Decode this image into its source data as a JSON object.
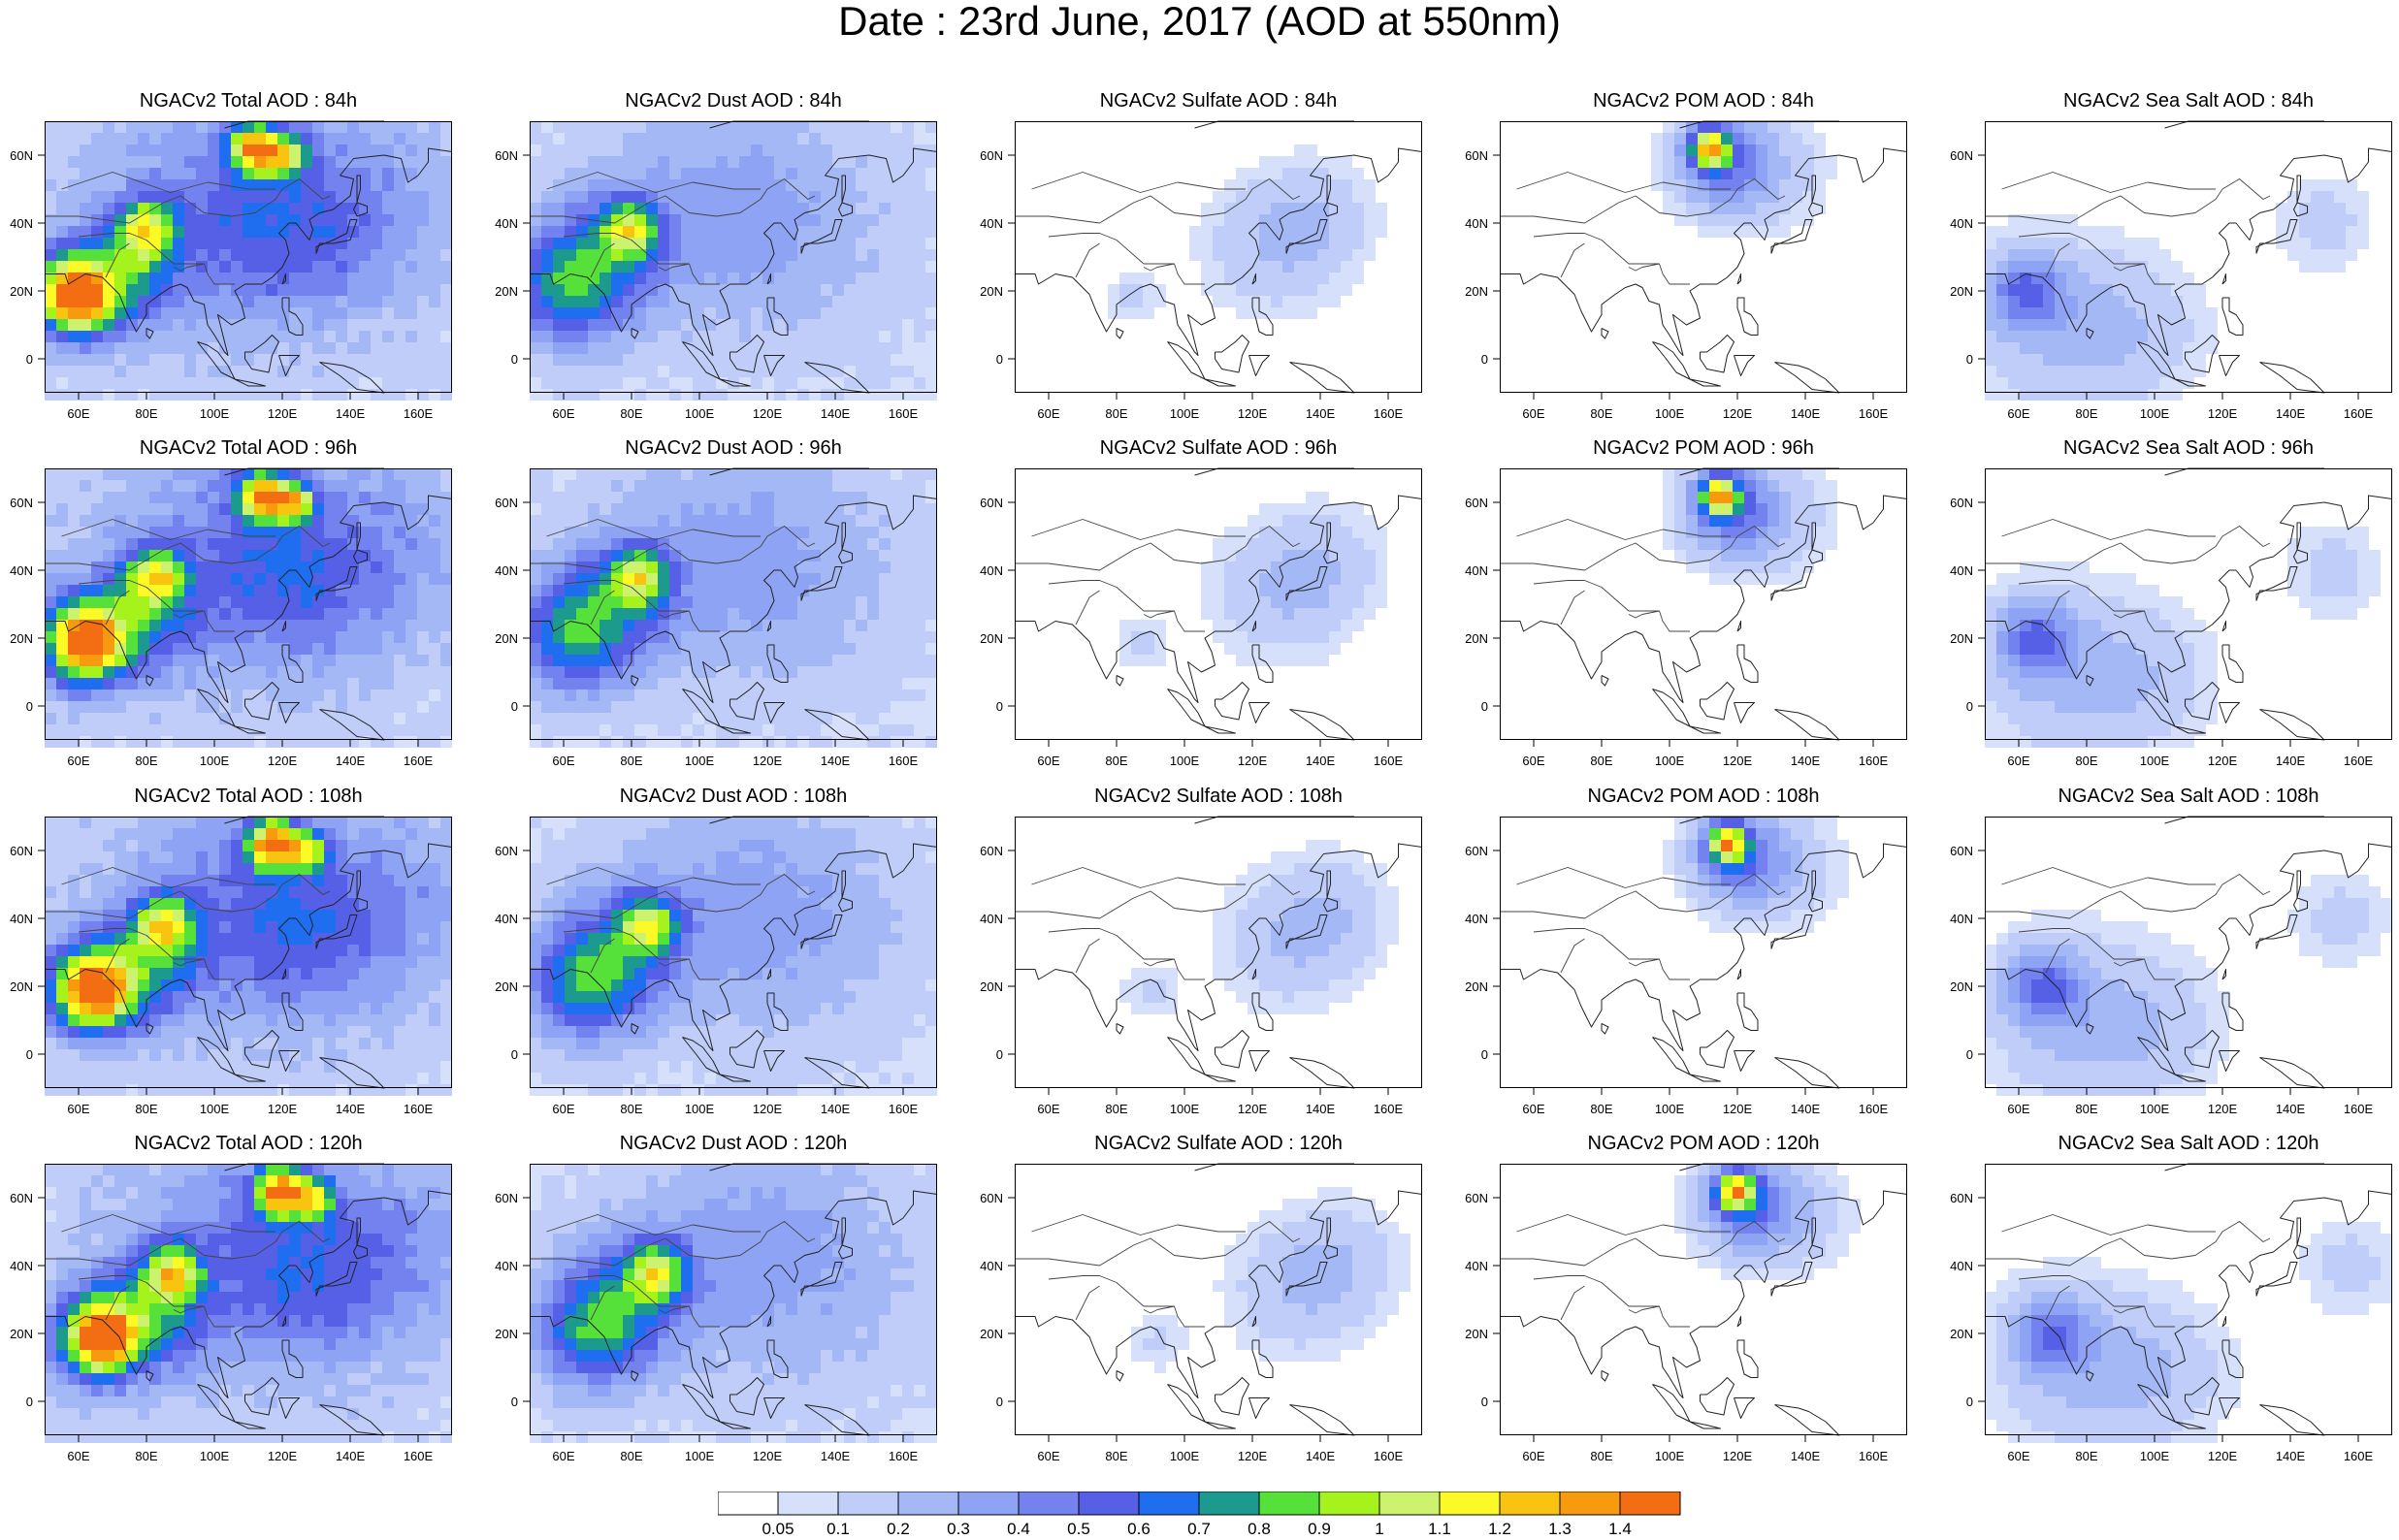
{
  "title": "Date : 23rd June, 2017 (AOD at 550nm)",
  "map": {
    "projection": "cylindrical-equidistant",
    "lon_range": [
      50,
      170
    ],
    "lat_range": [
      -10,
      70
    ],
    "lon_ticks": [
      "60E",
      "80E",
      "100E",
      "120E",
      "140E",
      "160E"
    ],
    "lat_ticks": [
      "0",
      "20N",
      "40N",
      "60N"
    ]
  },
  "panels": [
    {
      "title": "NGACv2 Total AOD : 84h",
      "species": "total",
      "hour": 84
    },
    {
      "title": "NGACv2 Dust AOD : 84h",
      "species": "dust",
      "hour": 84
    },
    {
      "title": "NGACv2 Sulfate AOD : 84h",
      "species": "sulfate",
      "hour": 84
    },
    {
      "title": "NGACv2 POM AOD : 84h",
      "species": "pom",
      "hour": 84
    },
    {
      "title": "NGACv2 Sea Salt AOD : 84h",
      "species": "seasalt",
      "hour": 84
    },
    {
      "title": "NGACv2 Total AOD : 96h",
      "species": "total",
      "hour": 96
    },
    {
      "title": "NGACv2 Dust AOD : 96h",
      "species": "dust",
      "hour": 96
    },
    {
      "title": "NGACv2 Sulfate AOD : 96h",
      "species": "sulfate",
      "hour": 96
    },
    {
      "title": "NGACv2 POM AOD : 96h",
      "species": "pom",
      "hour": 96
    },
    {
      "title": "NGACv2 Sea Salt AOD : 96h",
      "species": "seasalt",
      "hour": 96
    },
    {
      "title": "NGACv2 Total AOD : 108h",
      "species": "total",
      "hour": 108
    },
    {
      "title": "NGACv2 Dust AOD : 108h",
      "species": "dust",
      "hour": 108
    },
    {
      "title": "NGACv2 Sulfate AOD : 108h",
      "species": "sulfate",
      "hour": 108
    },
    {
      "title": "NGACv2 POM AOD : 108h",
      "species": "pom",
      "hour": 108
    },
    {
      "title": "NGACv2 Sea Salt AOD : 108h",
      "species": "seasalt",
      "hour": 108
    },
    {
      "title": "NGACv2 Total AOD : 120h",
      "species": "total",
      "hour": 120
    },
    {
      "title": "NGACv2 Dust AOD : 120h",
      "species": "dust",
      "hour": 120
    },
    {
      "title": "NGACv2 Sulfate AOD : 120h",
      "species": "sulfate",
      "hour": 120
    },
    {
      "title": "NGACv2 POM AOD : 120h",
      "species": "pom",
      "hour": 120
    },
    {
      "title": "NGACv2 Sea Salt  AOD : 120h",
      "species": "seasalt",
      "hour": 120
    }
  ],
  "colorbar": {
    "labels": [
      "0.05",
      "0.1",
      "0.2",
      "0.3",
      "0.4",
      "0.5",
      "0.6",
      "0.7",
      "0.8",
      "0.9",
      "1",
      "1.1",
      "1.2",
      "1.3",
      "1.4"
    ],
    "colors": [
      "#ffffff",
      "#d6e0fa",
      "#bfcdf8",
      "#a5b8f6",
      "#8ea3f3",
      "#7382ef",
      "#5560e6",
      "#1f6ef0",
      "#1d9a8e",
      "#56e03a",
      "#a6f21c",
      "#ccf26e",
      "#fbfa26",
      "#f9c40f",
      "#f79a0e",
      "#f36d12",
      "#ec2a1c"
    ]
  },
  "plumes": {
    "total": [
      {
        "lon": 60,
        "lat": 18,
        "v": 0.82,
        "r": 7
      },
      {
        "lon": 57,
        "lat": 20,
        "v": 0.6,
        "r": 10
      },
      {
        "lon": 80,
        "lat": 38,
        "v": 0.75,
        "r": 6
      },
      {
        "lon": 112,
        "lat": 62,
        "v": 1.1,
        "r": 5
      },
      {
        "lon": 122,
        "lat": 60,
        "v": 0.7,
        "r": 4
      },
      {
        "lon": 75,
        "lat": 25,
        "v": 0.45,
        "r": 12
      },
      {
        "lon": 100,
        "lat": 50,
        "v": 0.25,
        "r": 25
      },
      {
        "lon": 120,
        "lat": 35,
        "v": 0.3,
        "r": 18
      },
      {
        "lon": 150,
        "lat": 45,
        "v": 0.2,
        "r": 20
      }
    ],
    "dust": [
      {
        "lon": 60,
        "lat": 20,
        "v": 0.5,
        "r": 12
      },
      {
        "lon": 80,
        "lat": 38,
        "v": 0.7,
        "r": 6
      },
      {
        "lon": 70,
        "lat": 30,
        "v": 0.35,
        "r": 14
      },
      {
        "lon": 100,
        "lat": 45,
        "v": 0.2,
        "r": 25
      },
      {
        "lon": 130,
        "lat": 38,
        "v": 0.15,
        "r": 25
      }
    ],
    "sulfate": [
      {
        "lon": 125,
        "lat": 33,
        "v": 0.18,
        "r": 14
      },
      {
        "lon": 140,
        "lat": 42,
        "v": 0.14,
        "r": 12
      },
      {
        "lon": 85,
        "lat": 18,
        "v": 0.12,
        "r": 6
      }
    ],
    "pom": [
      {
        "lon": 112,
        "lat": 62,
        "v": 1.0,
        "r": 4
      },
      {
        "lon": 115,
        "lat": 58,
        "v": 0.45,
        "r": 10
      },
      {
        "lon": 130,
        "lat": 55,
        "v": 0.15,
        "r": 12
      }
    ],
    "seasalt": [
      {
        "lon": 62,
        "lat": 20,
        "v": 0.4,
        "r": 8
      },
      {
        "lon": 70,
        "lat": 10,
        "v": 0.2,
        "r": 18
      },
      {
        "lon": 95,
        "lat": 8,
        "v": 0.14,
        "r": 15
      },
      {
        "lon": 150,
        "lat": 40,
        "v": 0.14,
        "r": 10
      }
    ]
  }
}
